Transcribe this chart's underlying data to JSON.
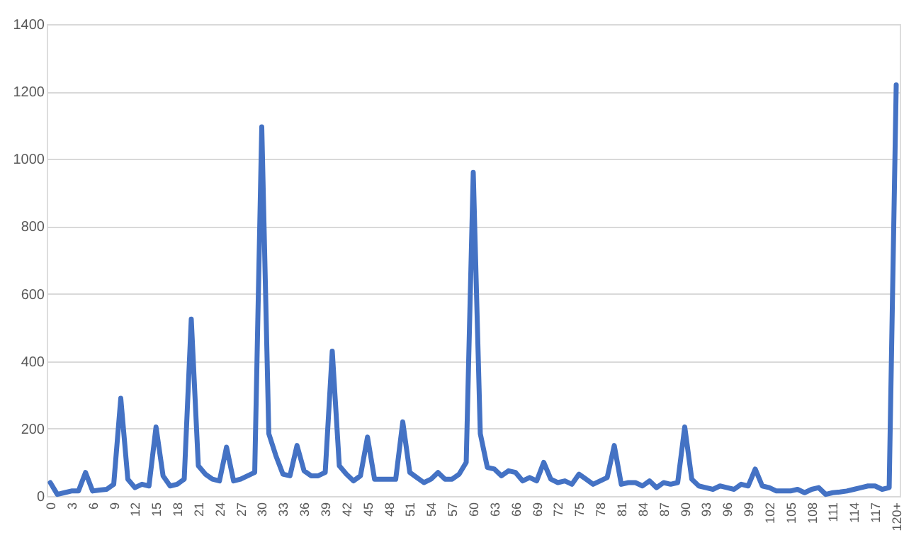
{
  "chart_data": {
    "type": "line",
    "categories": [
      "0",
      null,
      null,
      "3",
      null,
      null,
      "6",
      null,
      null,
      "9",
      null,
      null,
      "12",
      null,
      null,
      "15",
      null,
      null,
      "18",
      null,
      null,
      "21",
      null,
      null,
      "24",
      null,
      null,
      "27",
      null,
      null,
      "30",
      null,
      null,
      "33",
      null,
      null,
      "36",
      null,
      null,
      "39",
      null,
      null,
      "42",
      null,
      null,
      "45",
      null,
      null,
      "48",
      null,
      null,
      "51",
      null,
      null,
      "54",
      null,
      null,
      "57",
      null,
      null,
      "60",
      null,
      null,
      "63",
      null,
      null,
      "66",
      null,
      null,
      "69",
      null,
      null,
      "72",
      null,
      null,
      "75",
      null,
      null,
      "78",
      null,
      null,
      "81",
      null,
      null,
      "84",
      null,
      null,
      "87",
      null,
      null,
      "90",
      null,
      null,
      "93",
      null,
      null,
      "96",
      null,
      null,
      "99",
      null,
      null,
      "102",
      null,
      null,
      "105",
      null,
      null,
      "108",
      null,
      null,
      "111",
      null,
      null,
      "114",
      null,
      null,
      "117",
      null,
      null,
      "120+"
    ],
    "series": [
      {
        "color": "#4472c4",
        "values": [
          40,
          5,
          10,
          15,
          15,
          70,
          15,
          18,
          20,
          35,
          290,
          50,
          25,
          35,
          30,
          205,
          60,
          30,
          35,
          50,
          525,
          90,
          65,
          50,
          45,
          145,
          45,
          50,
          60,
          70,
          1095,
          185,
          120,
          65,
          60,
          150,
          75,
          60,
          60,
          70,
          430,
          90,
          65,
          45,
          60,
          175,
          50,
          50,
          50,
          50,
          220,
          70,
          55,
          40,
          50,
          70,
          50,
          50,
          65,
          100,
          960,
          185,
          85,
          80,
          60,
          75,
          70,
          45,
          55,
          45,
          100,
          50,
          40,
          45,
          35,
          65,
          50,
          35,
          45,
          55,
          150,
          35,
          40,
          40,
          30,
          45,
          25,
          40,
          35,
          40,
          205,
          50,
          30,
          25,
          20,
          30,
          25,
          20,
          35,
          30,
          80,
          30,
          25,
          15,
          15,
          15,
          20,
          10,
          20,
          25,
          5,
          10,
          12,
          15,
          20,
          25,
          30,
          30,
          20,
          25,
          1220
        ]
      }
    ],
    "ylim": [
      0,
      1400
    ],
    "yticks": [
      0,
      200,
      400,
      600,
      800,
      1000,
      1200,
      1400
    ],
    "grid": "y",
    "marker": "none",
    "line_style": "solid"
  }
}
